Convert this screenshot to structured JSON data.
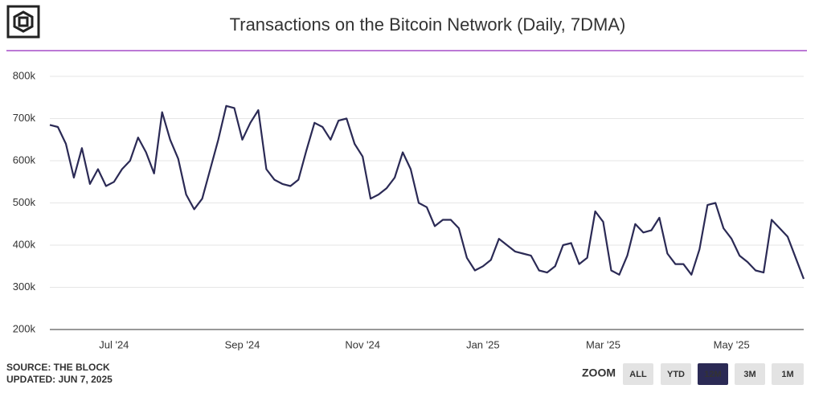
{
  "chart_data": {
    "type": "line",
    "title": "Transactions on the Bitcoin Network (Daily, 7DMA)",
    "categories": [
      null,
      null,
      null,
      null,
      null,
      null,
      null,
      null,
      "Jul '24",
      null,
      null,
      null,
      null,
      null,
      null,
      null,
      null,
      null,
      null,
      null,
      null,
      null,
      null,
      null,
      "Sep '24",
      null,
      null,
      null,
      null,
      null,
      null,
      null,
      null,
      null,
      null,
      null,
      null,
      null,
      null,
      "Nov '24",
      null,
      null,
      null,
      null,
      null,
      null,
      null,
      null,
      null,
      null,
      null,
      null,
      null,
      null,
      "Jan '25",
      null,
      null,
      null,
      null,
      null,
      null,
      null,
      null,
      null,
      null,
      null,
      null,
      null,
      null,
      "Mar '25",
      null,
      null,
      null,
      null,
      null,
      null,
      null,
      null,
      null,
      null,
      null,
      null,
      null,
      null,
      null,
      "May '25",
      null,
      null,
      null,
      null,
      null,
      null,
      null,
      null,
      null
    ],
    "series": [
      {
        "color": "#2b2a55",
        "values": [
          685000,
          680000,
          640000,
          560000,
          630000,
          545000,
          580000,
          540000,
          550000,
          580000,
          600000,
          655000,
          620000,
          570000,
          715000,
          650000,
          605000,
          520000,
          485000,
          510000,
          580000,
          650000,
          730000,
          725000,
          650000,
          690000,
          720000,
          580000,
          555000,
          545000,
          540000,
          555000,
          625000,
          690000,
          680000,
          650000,
          695000,
          700000,
          640000,
          610000,
          510000,
          520000,
          535000,
          560000,
          620000,
          580000,
          500000,
          490000,
          445000,
          460000,
          460000,
          440000,
          370000,
          340000,
          350000,
          365000,
          415000,
          400000,
          385000,
          380000,
          375000,
          340000,
          335000,
          350000,
          400000,
          405000,
          355000,
          370000,
          480000,
          455000,
          340000,
          330000,
          375000,
          450000,
          430000,
          435000,
          465000,
          380000,
          355000,
          355000,
          330000,
          390000,
          495000,
          500000,
          440000,
          415000,
          375000,
          360000,
          340000,
          335000,
          460000,
          440000,
          420000,
          370000,
          320000
        ]
      }
    ],
    "ylim": [
      200000,
      800000
    ],
    "yticks": [
      {
        "value": 200000,
        "label": "200k"
      },
      {
        "value": 300000,
        "label": "300k"
      },
      {
        "value": 400000,
        "label": "400k"
      },
      {
        "value": 500000,
        "label": "500k"
      },
      {
        "value": 600000,
        "label": "600k"
      },
      {
        "value": 700000,
        "label": "700k"
      },
      {
        "value": 800000,
        "label": "800k"
      }
    ],
    "grid": true
  },
  "footer": {
    "source": "SOURCE: THE BLOCK",
    "updated": "UPDATED: JUN 7, 2025"
  },
  "zoom": {
    "label": "ZOOM",
    "buttons": [
      "ALL",
      "YTD",
      "12M",
      "3M",
      "1M"
    ],
    "active": "12M"
  }
}
